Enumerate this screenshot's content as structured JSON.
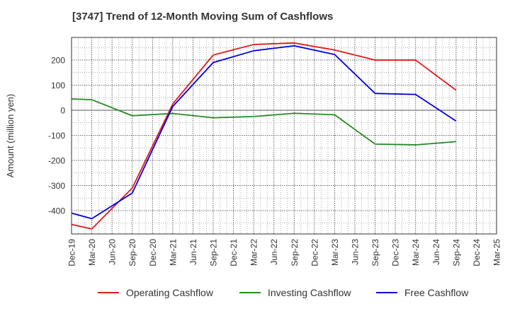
{
  "chart_data": {
    "type": "line",
    "title": "[3747]  Trend of 12-Month Moving Sum of Cashflows",
    "ylabel": "Amount (million yen)",
    "xlabel": "",
    "x_ticks": [
      "Dec-19",
      "Mar-20",
      "Jun-20",
      "Sep-20",
      "Dec-20",
      "Mar-21",
      "Jun-21",
      "Sep-21",
      "Dec-21",
      "Mar-22",
      "Jun-22",
      "Sep-22",
      "Dec-22",
      "Mar-23",
      "Jun-23",
      "Sep-23",
      "Dec-23",
      "Mar-24",
      "Jun-24",
      "Sep-24",
      "Dec-24",
      "Mar-25"
    ],
    "y_ticks": [
      -400,
      -300,
      -200,
      -100,
      0,
      100,
      200
    ],
    "ylim": [
      -493,
      290
    ],
    "grid": true,
    "legend_position": "bottom",
    "series": [
      {
        "name": "Operating Cashflow",
        "color": "#e31a1c",
        "points": [
          {
            "x": "Dec-19",
            "y": -455
          },
          {
            "x": "Mar-20",
            "y": -473
          },
          {
            "x": "Sep-20",
            "y": -310
          },
          {
            "x": "Mar-21",
            "y": 25
          },
          {
            "x": "Sep-21",
            "y": 220
          },
          {
            "x": "Mar-22",
            "y": 262
          },
          {
            "x": "Sep-22",
            "y": 268
          },
          {
            "x": "Mar-23",
            "y": 240
          },
          {
            "x": "Sep-23",
            "y": 200
          },
          {
            "x": "Mar-24",
            "y": 200
          },
          {
            "x": "Sep-24",
            "y": 80
          }
        ]
      },
      {
        "name": "Investing Cashflow",
        "color": "#238b23",
        "points": [
          {
            "x": "Dec-19",
            "y": 45
          },
          {
            "x": "Mar-20",
            "y": 42
          },
          {
            "x": "Sep-20",
            "y": -22
          },
          {
            "x": "Mar-21",
            "y": -13
          },
          {
            "x": "Sep-21",
            "y": -30
          },
          {
            "x": "Mar-22",
            "y": -25
          },
          {
            "x": "Sep-22",
            "y": -12
          },
          {
            "x": "Mar-23",
            "y": -18
          },
          {
            "x": "Sep-23",
            "y": -135
          },
          {
            "x": "Mar-24",
            "y": -138
          },
          {
            "x": "Sep-24",
            "y": -125
          }
        ]
      },
      {
        "name": "Free Cashflow",
        "color": "#0000e0",
        "points": [
          {
            "x": "Dec-19",
            "y": -410
          },
          {
            "x": "Mar-20",
            "y": -432
          },
          {
            "x": "Sep-20",
            "y": -330
          },
          {
            "x": "Mar-21",
            "y": 15
          },
          {
            "x": "Sep-21",
            "y": 190
          },
          {
            "x": "Mar-22",
            "y": 237
          },
          {
            "x": "Sep-22",
            "y": 257
          },
          {
            "x": "Mar-23",
            "y": 222
          },
          {
            "x": "Sep-23",
            "y": 67
          },
          {
            "x": "Mar-24",
            "y": 63
          },
          {
            "x": "Sep-24",
            "y": -43
          }
        ]
      }
    ]
  }
}
